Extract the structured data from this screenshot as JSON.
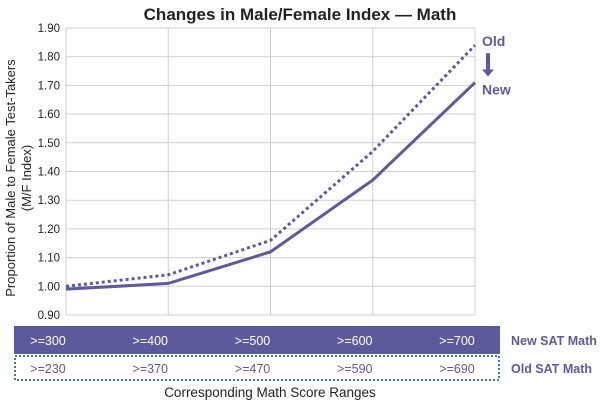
{
  "colors": {
    "accent": "#5c5a9a",
    "grid": "#cfcfcf",
    "old_band_border": "#3e7f8a",
    "white": "#ffffff"
  },
  "chart_data": {
    "type": "line",
    "title": "Changes in Male/Female Index — Math",
    "ylabel_line1": "Proportion of Male to Female Test-Takers",
    "ylabel_line2": "(M/F Index)",
    "xlabel": "Corresponding Math Score Ranges",
    "ylim": [
      0.9,
      1.9
    ],
    "yticks": [
      "1.90",
      "1.80",
      "1.70",
      "1.60",
      "1.50",
      "1.40",
      "1.30",
      "1.20",
      "1.10",
      "1.00",
      "0.90"
    ],
    "categories": [
      ">=300",
      ">=400",
      ">=500",
      ">=600",
      ">=700"
    ],
    "series": [
      {
        "name": "Old",
        "style": "dotted",
        "values": [
          1.0,
          1.04,
          1.16,
          1.47,
          1.84
        ]
      },
      {
        "name": "New",
        "style": "solid",
        "values": [
          0.99,
          1.01,
          1.12,
          1.37,
          1.71
        ]
      }
    ],
    "annotation_arrow": "down",
    "new_sat_label": "New SAT Math",
    "old_sat_label": "Old SAT Math",
    "new_sat_ranges": [
      ">=300",
      ">=400",
      ">=500",
      ">=600",
      ">=700"
    ],
    "old_sat_ranges": [
      ">=230",
      ">=370",
      ">=470",
      ">=590",
      ">=690"
    ]
  }
}
